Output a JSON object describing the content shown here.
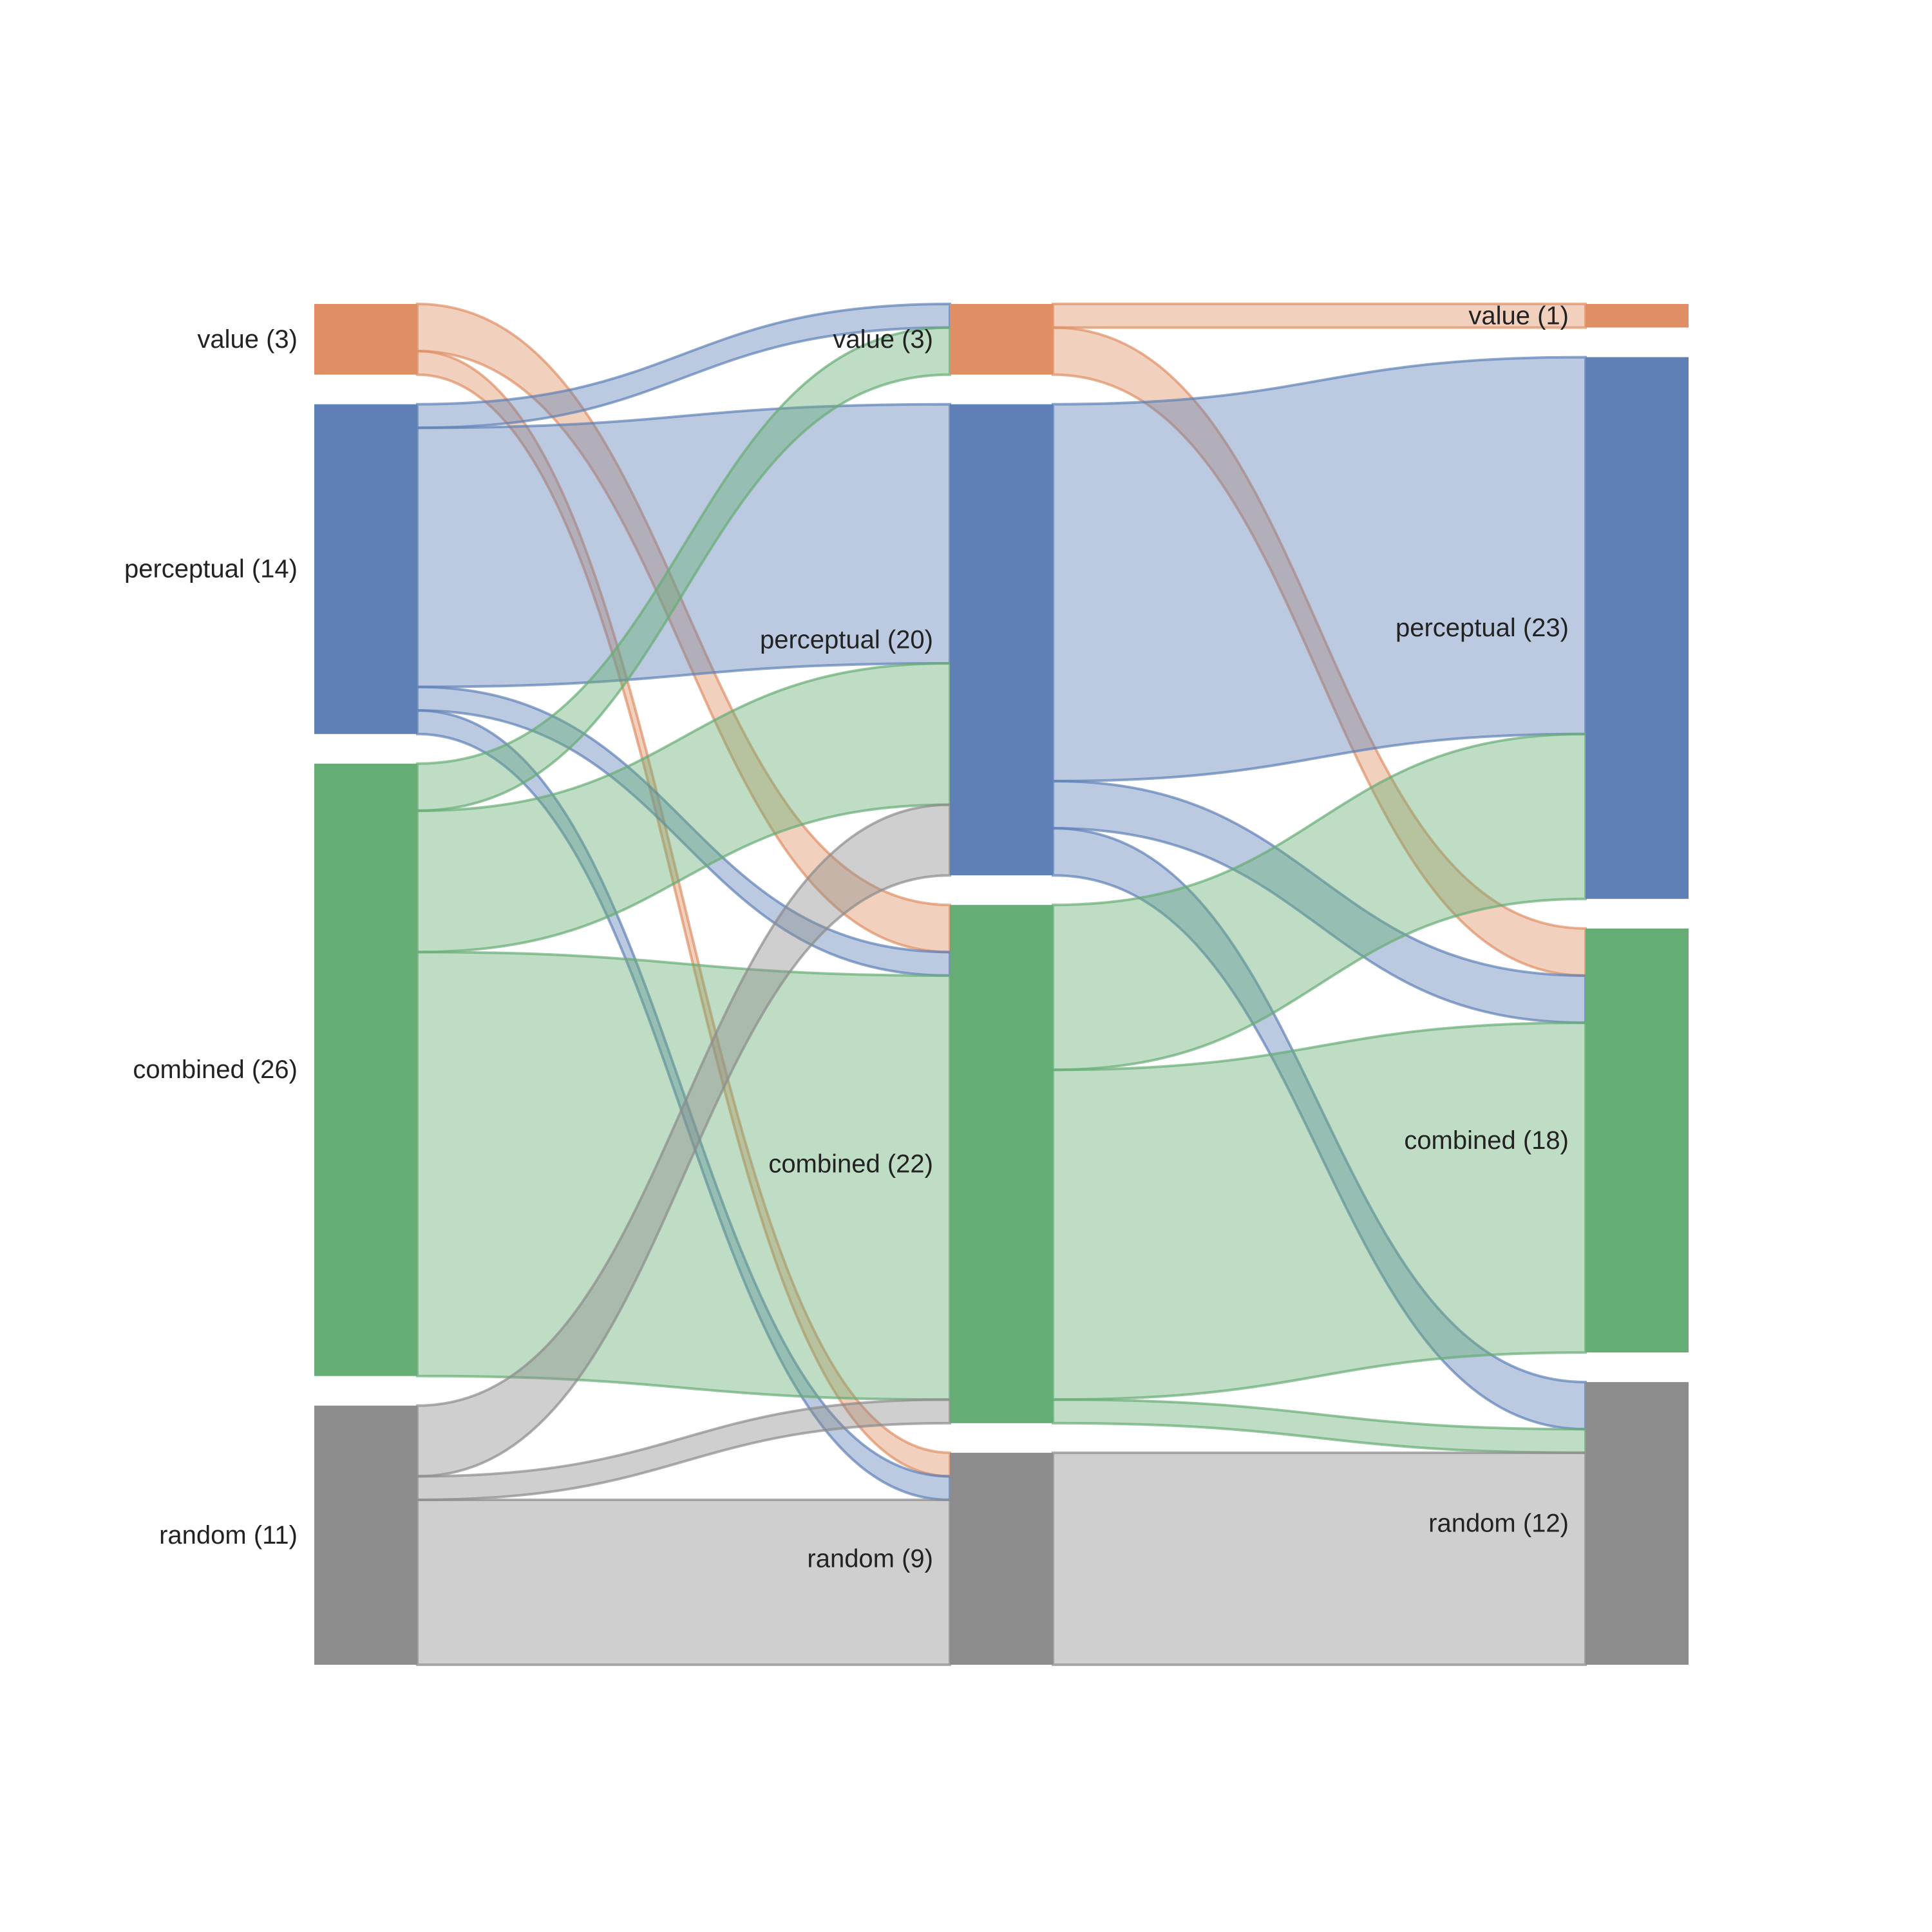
{
  "chart_data": {
    "type": "sankey",
    "title": "",
    "columns": [
      {
        "nodes": [
          {
            "id": "L_value",
            "label": "value (3)",
            "value": 3,
            "color": "#e08e64"
          },
          {
            "id": "L_perceptual",
            "label": "perceptual (14)",
            "value": 14,
            "color": "#5e80b6"
          },
          {
            "id": "L_combined",
            "label": "combined (26)",
            "value": 26,
            "color": "#66ad75"
          },
          {
            "id": "L_random",
            "label": "random (11)",
            "value": 11,
            "color": "#8c8c8c"
          }
        ]
      },
      {
        "nodes": [
          {
            "id": "M_value",
            "label": "value (3)",
            "value": 3,
            "color": "#e08e64"
          },
          {
            "id": "M_perceptual",
            "label": "perceptual (20)",
            "value": 20,
            "color": "#5e80b6"
          },
          {
            "id": "M_combined",
            "label": "combined (22)",
            "value": 22,
            "color": "#66ad75"
          },
          {
            "id": "M_random",
            "label": "random (9)",
            "value": 9,
            "color": "#8c8c8c"
          }
        ]
      },
      {
        "nodes": [
          {
            "id": "R_value",
            "label": "value (1)",
            "value": 1,
            "color": "#e08e64"
          },
          {
            "id": "R_perceptual",
            "label": "perceptual (23)",
            "value": 23,
            "color": "#5e80b6"
          },
          {
            "id": "R_combined",
            "label": "combined (18)",
            "value": 18,
            "color": "#66ad75"
          },
          {
            "id": "R_random",
            "label": "random (12)",
            "value": 12,
            "color": "#8c8c8c"
          }
        ]
      }
    ],
    "links": [
      {
        "source": "L_value",
        "target": "M_combined",
        "value": 2
      },
      {
        "source": "L_value",
        "target": "M_random",
        "value": 1
      },
      {
        "source": "L_perceptual",
        "target": "M_value",
        "value": 1
      },
      {
        "source": "L_perceptual",
        "target": "M_perceptual",
        "value": 11
      },
      {
        "source": "L_perceptual",
        "target": "M_combined",
        "value": 1
      },
      {
        "source": "L_perceptual",
        "target": "M_random",
        "value": 1
      },
      {
        "source": "L_combined",
        "target": "M_value",
        "value": 2
      },
      {
        "source": "L_combined",
        "target": "M_perceptual",
        "value": 6
      },
      {
        "source": "L_combined",
        "target": "M_combined",
        "value": 18
      },
      {
        "source": "L_random",
        "target": "M_perceptual",
        "value": 3
      },
      {
        "source": "L_random",
        "target": "M_combined",
        "value": 1
      },
      {
        "source": "L_random",
        "target": "M_random",
        "value": 7
      },
      {
        "source": "M_value",
        "target": "R_value",
        "value": 1
      },
      {
        "source": "M_value",
        "target": "R_combined",
        "value": 2
      },
      {
        "source": "M_perceptual",
        "target": "R_perceptual",
        "value": 16
      },
      {
        "source": "M_perceptual",
        "target": "R_combined",
        "value": 2
      },
      {
        "source": "M_perceptual",
        "target": "R_random",
        "value": 2
      },
      {
        "source": "M_combined",
        "target": "R_perceptual",
        "value": 7
      },
      {
        "source": "M_combined",
        "target": "R_combined",
        "value": 14
      },
      {
        "source": "M_combined",
        "target": "R_random",
        "value": 1
      },
      {
        "source": "M_random",
        "target": "R_random",
        "value": 9
      }
    ]
  }
}
